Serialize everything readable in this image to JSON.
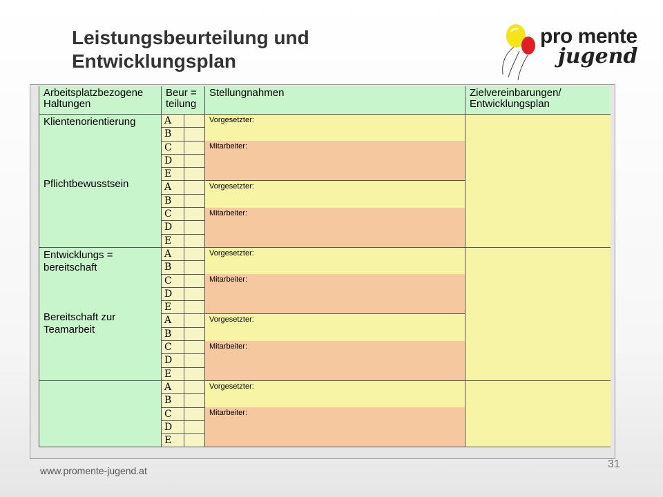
{
  "title": {
    "line1": "Leistungsbeurteilung und",
    "line2": "Entwicklungsplan"
  },
  "logo": {
    "brand": "pro mente",
    "sub": "jugend",
    "balloon_colors": [
      "#f6e31a",
      "#e11d26"
    ]
  },
  "table": {
    "headers": {
      "col1_l1": "Arbeitsplatzbezogene",
      "col1_l2": "Haltungen",
      "col2_l1": "Beur =",
      "col2_l2": "teilung",
      "col3": "Stellungnahmen",
      "col4_l1": "Zielvereinbarungen/",
      "col4_l2": "Entwicklungsplan"
    },
    "labels": {
      "supervisor": "Vorgesetzter:",
      "employee": "Mitarbeiter:"
    },
    "grades": [
      "A",
      "B",
      "C",
      "D",
      "E"
    ],
    "groups": [
      {
        "q1": "Klientenorientierung",
        "q2": "Pflichtbewusstsein"
      },
      {
        "q1": "Entwicklungs = bereitschaft",
        "q2": "Bereitschaft zur Teamarbeit"
      },
      {
        "q1": "",
        "q2": ""
      }
    ],
    "colors": {
      "header_green": "#c8f5cc",
      "yellow": "#f7f4a6",
      "orange": "#f5c8a0",
      "grade_bg": "#f7f4c6"
    }
  },
  "footer": {
    "url": "www.promente-jugend.at",
    "page": "31"
  }
}
